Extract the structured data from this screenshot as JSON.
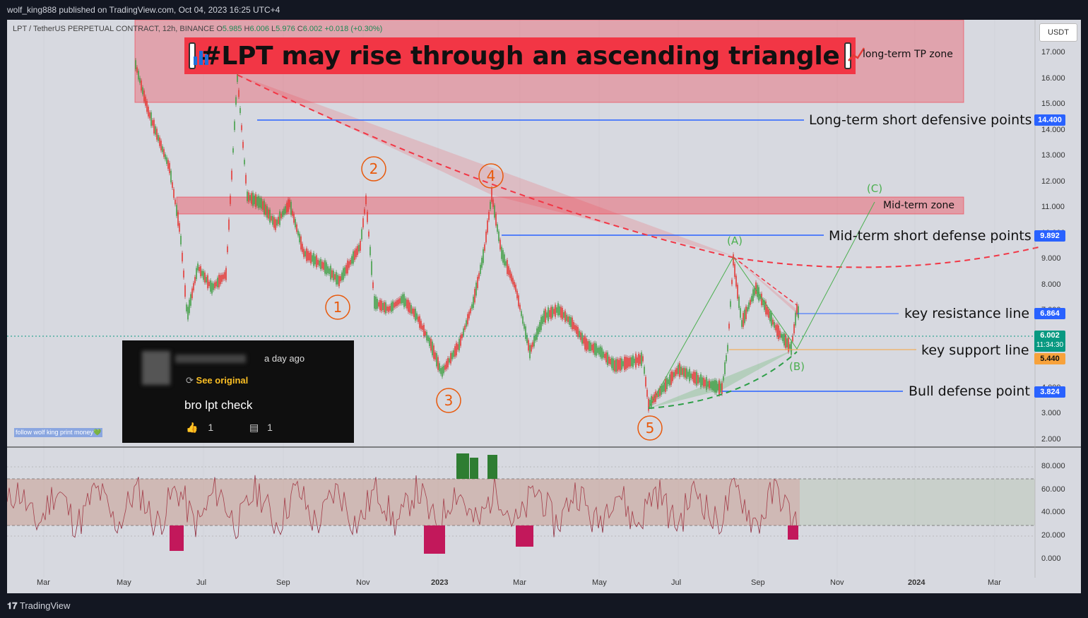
{
  "publisher_line": "wolf_king888 published on TradingView.com, Oct 04, 2023 16:25 UTC+4",
  "symbol": {
    "name": "LPT / TetherUS PERPETUAL CONTRACT, 12h, BINANCE",
    "open_label": "O",
    "open": "5.985",
    "high_label": "H",
    "high": "6.006",
    "low_label": "L",
    "low": "5.976",
    "close_label": "C",
    "close": "6.002",
    "change": "+0.018 (+0.30%)"
  },
  "headline": "#LPT may rise through an ascending triangle",
  "currency_button": "USDT",
  "zones": {
    "long_term_tp": "long-term TP zone",
    "mid_term": "Mid-term zone"
  },
  "levels": {
    "long_term_short": "Long-term short defensive points",
    "mid_term_short": "Mid-term short defense points",
    "key_resistance": "key resistance line",
    "key_support": "key support line",
    "bull_defense": "Bull defense point"
  },
  "price_tags": {
    "long_term_short": "14.400",
    "mid_term_short": "9.892",
    "key_resistance": "6.864",
    "current_price": "6.002",
    "countdown": "11:34:30",
    "key_support": "5.440",
    "bull_defense": "3.824"
  },
  "price_axis": [
    "17.000",
    "16.000",
    "15.000",
    "14.000",
    "13.000",
    "12.000",
    "11.000",
    "10.000",
    "9.000",
    "8.000",
    "7.000",
    "6.000",
    "5.000",
    "4.000",
    "3.000",
    "2.000"
  ],
  "rsi_axis": [
    "80.000",
    "60.000",
    "40.000",
    "20.000",
    "0.000"
  ],
  "time_axis": [
    "Mar",
    "May",
    "Jul",
    "Sep",
    "Nov",
    "2023",
    "Mar",
    "May",
    "Jul",
    "Sep",
    "Nov",
    "2024",
    "Mar"
  ],
  "wave_labels": [
    "1",
    "2",
    "3",
    "4",
    "5"
  ],
  "abc_labels": [
    "(A)",
    "(B)",
    "(C)"
  ],
  "comment": {
    "time": "a day ago",
    "see_original": "See original",
    "text": "bro lpt check",
    "likes": "1",
    "replies": "1"
  },
  "follow_label": "follow wolf king print money💚",
  "footer": "TradingView",
  "colors": {
    "chart_bg": "#d7d9e0",
    "zone_red": "#f23645",
    "level_blue": "#2962ff",
    "support_orange": "#f7a23b",
    "wave_orange": "#e8590c",
    "abc_green": "#4caf50",
    "price_green": "#089981"
  }
}
